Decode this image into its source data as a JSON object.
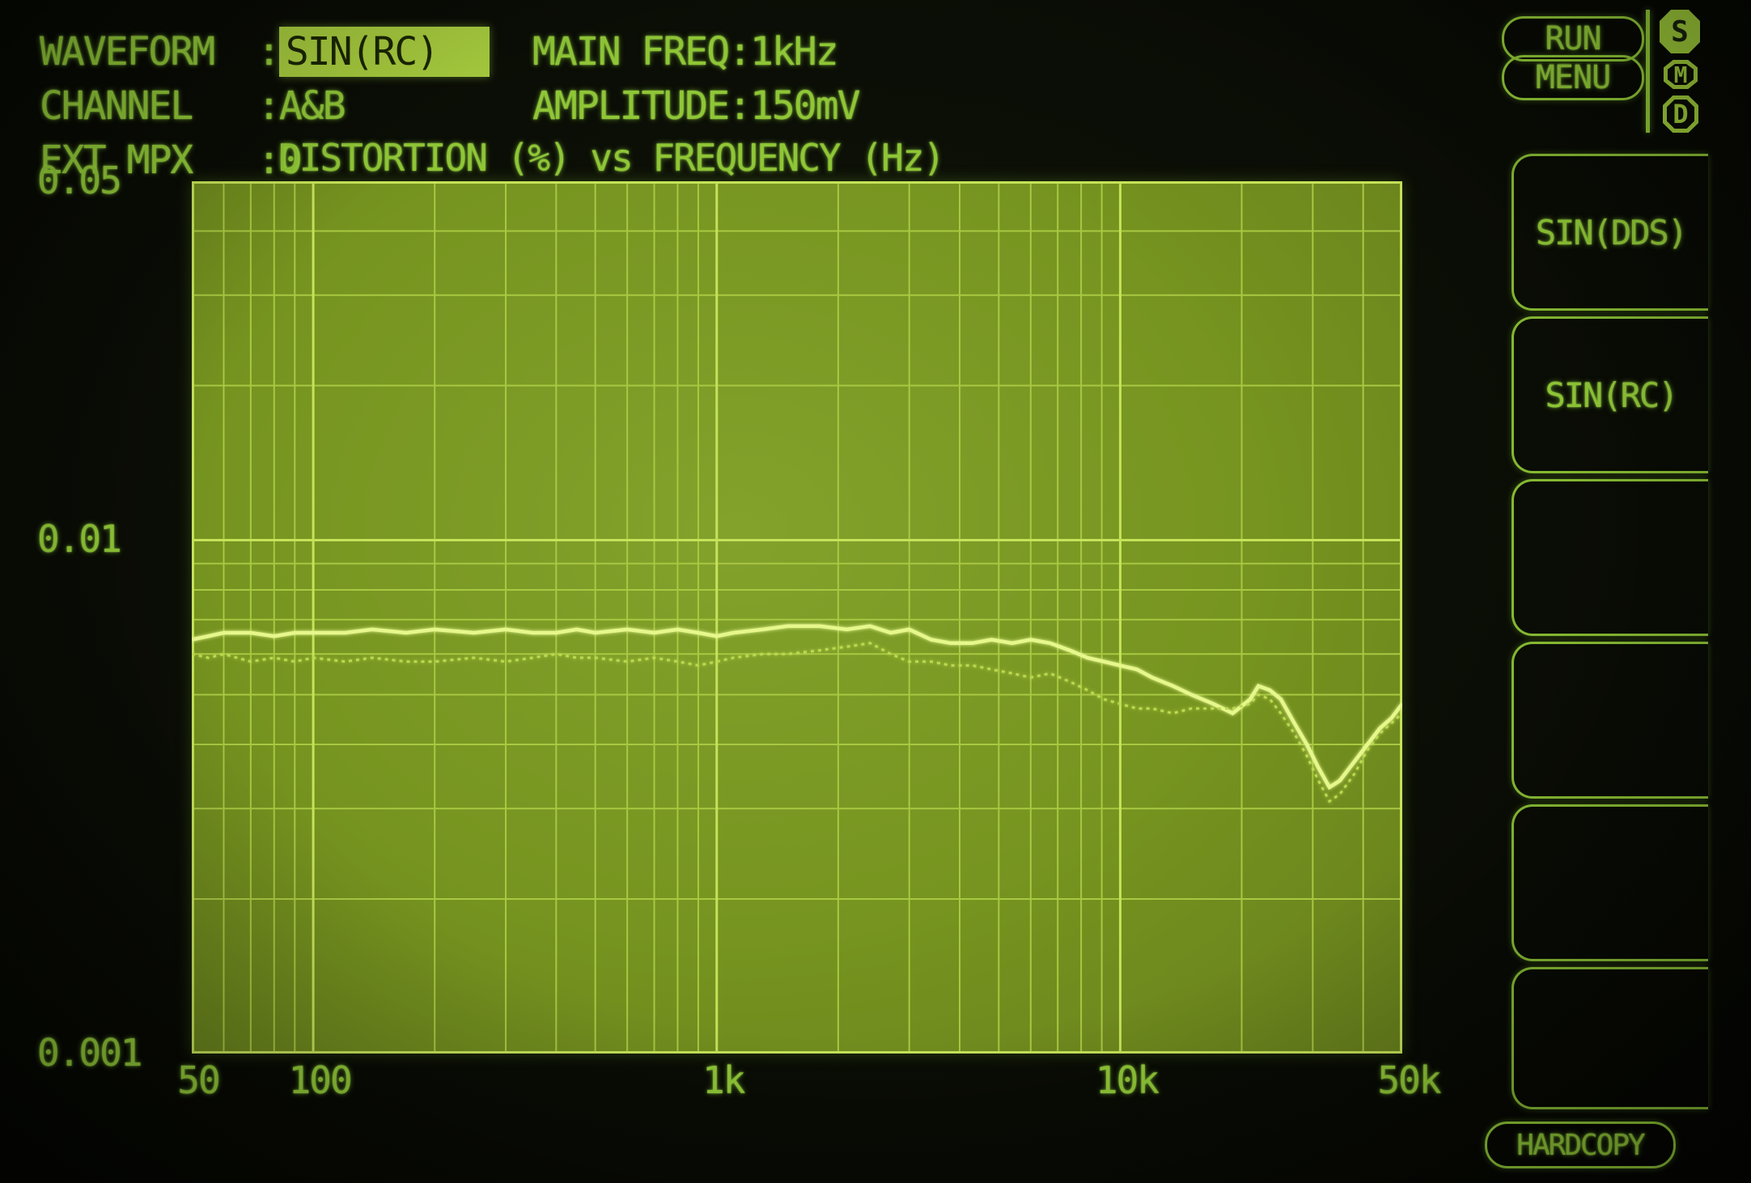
{
  "device_header": {
    "separator": ":",
    "left_rows": [
      {
        "label": "WAVEFORM",
        "value": "SIN(RC)",
        "highlighted": true
      },
      {
        "label": "CHANNEL",
        "value": "A&B",
        "highlighted": false
      },
      {
        "label": "EXT MPX",
        "value": "0",
        "highlighted": false
      }
    ],
    "mid_rows": [
      {
        "label": "MAIN FREQ",
        "value": "1kHz"
      },
      {
        "label": "AMPLITUDE",
        "value": "150mV"
      }
    ],
    "run_label": "RUN",
    "menu_label": "MENU",
    "mode_indicators": [
      {
        "label": "S",
        "active": true
      },
      {
        "label": "M",
        "active": false
      },
      {
        "label": "D",
        "active": false
      }
    ]
  },
  "chart_data": {
    "type": "line",
    "title": "DISTORTION (%) vs FREQUENCY (Hz)",
    "xlabel": "FREQUENCY (Hz)",
    "ylabel": "DISTORTION (%)",
    "x_scale": "log",
    "y_scale": "log",
    "xlim": [
      50,
      50000
    ],
    "ylim": [
      0.001,
      0.05
    ],
    "grid": true,
    "x_ticks": [
      {
        "value": 50,
        "label": "50"
      },
      {
        "value": 100,
        "label": "100"
      },
      {
        "value": 1000,
        "label": "1k"
      },
      {
        "value": 10000,
        "label": "10k"
      },
      {
        "value": 50000,
        "label": "50k"
      }
    ],
    "y_ticks": [
      {
        "value": 0.05,
        "label": "0.05"
      },
      {
        "value": 0.01,
        "label": "0.01"
      },
      {
        "value": 0.001,
        "label": "0.001"
      }
    ],
    "series": [
      {
        "name": "channel A distortion",
        "style": "bright-solid",
        "points": [
          [
            50,
            0.0064
          ],
          [
            55,
            0.0065
          ],
          [
            60,
            0.0066
          ],
          [
            70,
            0.0066
          ],
          [
            80,
            0.0065
          ],
          [
            90,
            0.0066
          ],
          [
            100,
            0.0066
          ],
          [
            120,
            0.0066
          ],
          [
            140,
            0.0067
          ],
          [
            170,
            0.0066
          ],
          [
            200,
            0.0067
          ],
          [
            250,
            0.0066
          ],
          [
            300,
            0.0067
          ],
          [
            350,
            0.0066
          ],
          [
            400,
            0.0066
          ],
          [
            450,
            0.0067
          ],
          [
            500,
            0.0066
          ],
          [
            600,
            0.0067
          ],
          [
            700,
            0.0066
          ],
          [
            800,
            0.0067
          ],
          [
            900,
            0.0066
          ],
          [
            1000,
            0.0065
          ],
          [
            1100,
            0.0066
          ],
          [
            1300,
            0.0067
          ],
          [
            1500,
            0.0068
          ],
          [
            1800,
            0.0068
          ],
          [
            2100,
            0.0067
          ],
          [
            2400,
            0.0068
          ],
          [
            2700,
            0.0066
          ],
          [
            3000,
            0.0067
          ],
          [
            3400,
            0.0064
          ],
          [
            3800,
            0.0063
          ],
          [
            4300,
            0.0063
          ],
          [
            4800,
            0.0064
          ],
          [
            5400,
            0.0063
          ],
          [
            6000,
            0.0064
          ],
          [
            6700,
            0.0063
          ],
          [
            7500,
            0.0061
          ],
          [
            8300,
            0.0059
          ],
          [
            9100,
            0.0058
          ],
          [
            10000,
            0.0057
          ],
          [
            11000,
            0.0056
          ],
          [
            12000,
            0.0054
          ],
          [
            13500,
            0.0052
          ],
          [
            15000,
            0.005
          ],
          [
            17000,
            0.0048
          ],
          [
            19000,
            0.0046
          ],
          [
            21000,
            0.0049
          ],
          [
            22000,
            0.0052
          ],
          [
            23500,
            0.0051
          ],
          [
            25000,
            0.0049
          ],
          [
            27000,
            0.0044
          ],
          [
            29000,
            0.004
          ],
          [
            31000,
            0.0036
          ],
          [
            33000,
            0.0033
          ],
          [
            35000,
            0.0034
          ],
          [
            38000,
            0.0037
          ],
          [
            41000,
            0.004
          ],
          [
            44000,
            0.0043
          ],
          [
            47000,
            0.0045
          ],
          [
            50000,
            0.0048
          ]
        ]
      },
      {
        "name": "channel B distortion",
        "style": "dim-dotted",
        "points": [
          [
            50,
            0.006
          ],
          [
            55,
            0.0059
          ],
          [
            60,
            0.006
          ],
          [
            70,
            0.0058
          ],
          [
            80,
            0.0059
          ],
          [
            90,
            0.0058
          ],
          [
            100,
            0.0059
          ],
          [
            120,
            0.0058
          ],
          [
            140,
            0.0059
          ],
          [
            170,
            0.0058
          ],
          [
            200,
            0.0058
          ],
          [
            250,
            0.0059
          ],
          [
            300,
            0.0058
          ],
          [
            350,
            0.0059
          ],
          [
            400,
            0.006
          ],
          [
            450,
            0.0059
          ],
          [
            500,
            0.0059
          ],
          [
            600,
            0.0058
          ],
          [
            700,
            0.0059
          ],
          [
            800,
            0.0058
          ],
          [
            900,
            0.0057
          ],
          [
            1000,
            0.0058
          ],
          [
            1100,
            0.0059
          ],
          [
            1300,
            0.006
          ],
          [
            1500,
            0.006
          ],
          [
            1800,
            0.0061
          ],
          [
            2100,
            0.0062
          ],
          [
            2400,
            0.0063
          ],
          [
            2700,
            0.006
          ],
          [
            3000,
            0.0058
          ],
          [
            3400,
            0.0058
          ],
          [
            3800,
            0.0057
          ],
          [
            4300,
            0.0057
          ],
          [
            4800,
            0.0056
          ],
          [
            5400,
            0.0055
          ],
          [
            6000,
            0.0054
          ],
          [
            6700,
            0.0055
          ],
          [
            7500,
            0.0053
          ],
          [
            8300,
            0.0051
          ],
          [
            9100,
            0.0049
          ],
          [
            10000,
            0.0048
          ],
          [
            11000,
            0.0047
          ],
          [
            12000,
            0.0047
          ],
          [
            13500,
            0.0046
          ],
          [
            15000,
            0.0047
          ],
          [
            17000,
            0.0047
          ],
          [
            19000,
            0.0047
          ],
          [
            21000,
            0.0048
          ],
          [
            22000,
            0.005
          ],
          [
            23500,
            0.0049
          ],
          [
            25000,
            0.0046
          ],
          [
            27000,
            0.0042
          ],
          [
            29000,
            0.0038
          ],
          [
            31000,
            0.0034
          ],
          [
            33000,
            0.0031
          ],
          [
            35000,
            0.0032
          ],
          [
            38000,
            0.0035
          ],
          [
            41000,
            0.0039
          ],
          [
            44000,
            0.0042
          ],
          [
            47000,
            0.0044
          ],
          [
            50000,
            0.0046
          ]
        ]
      }
    ]
  },
  "side_menu": {
    "buttons": [
      {
        "label": "SIN(DDS)"
      },
      {
        "label": "SIN(RC)"
      },
      {
        "label": ""
      },
      {
        "label": ""
      },
      {
        "label": ""
      },
      {
        "label": ""
      }
    ],
    "hardcopy_label": "HARDCOPY"
  },
  "colors": {
    "background": "#0a0d05",
    "text_green": "#8fc636",
    "plot_fill": "#76941f",
    "grid_minor": "#a9c842",
    "grid_major": "#c6e259",
    "trace_bright": "#e6f78c",
    "trace_dim": "#bcd94f",
    "highlight_fill": "#a7cc3e",
    "highlight_text": "#1b2602"
  }
}
